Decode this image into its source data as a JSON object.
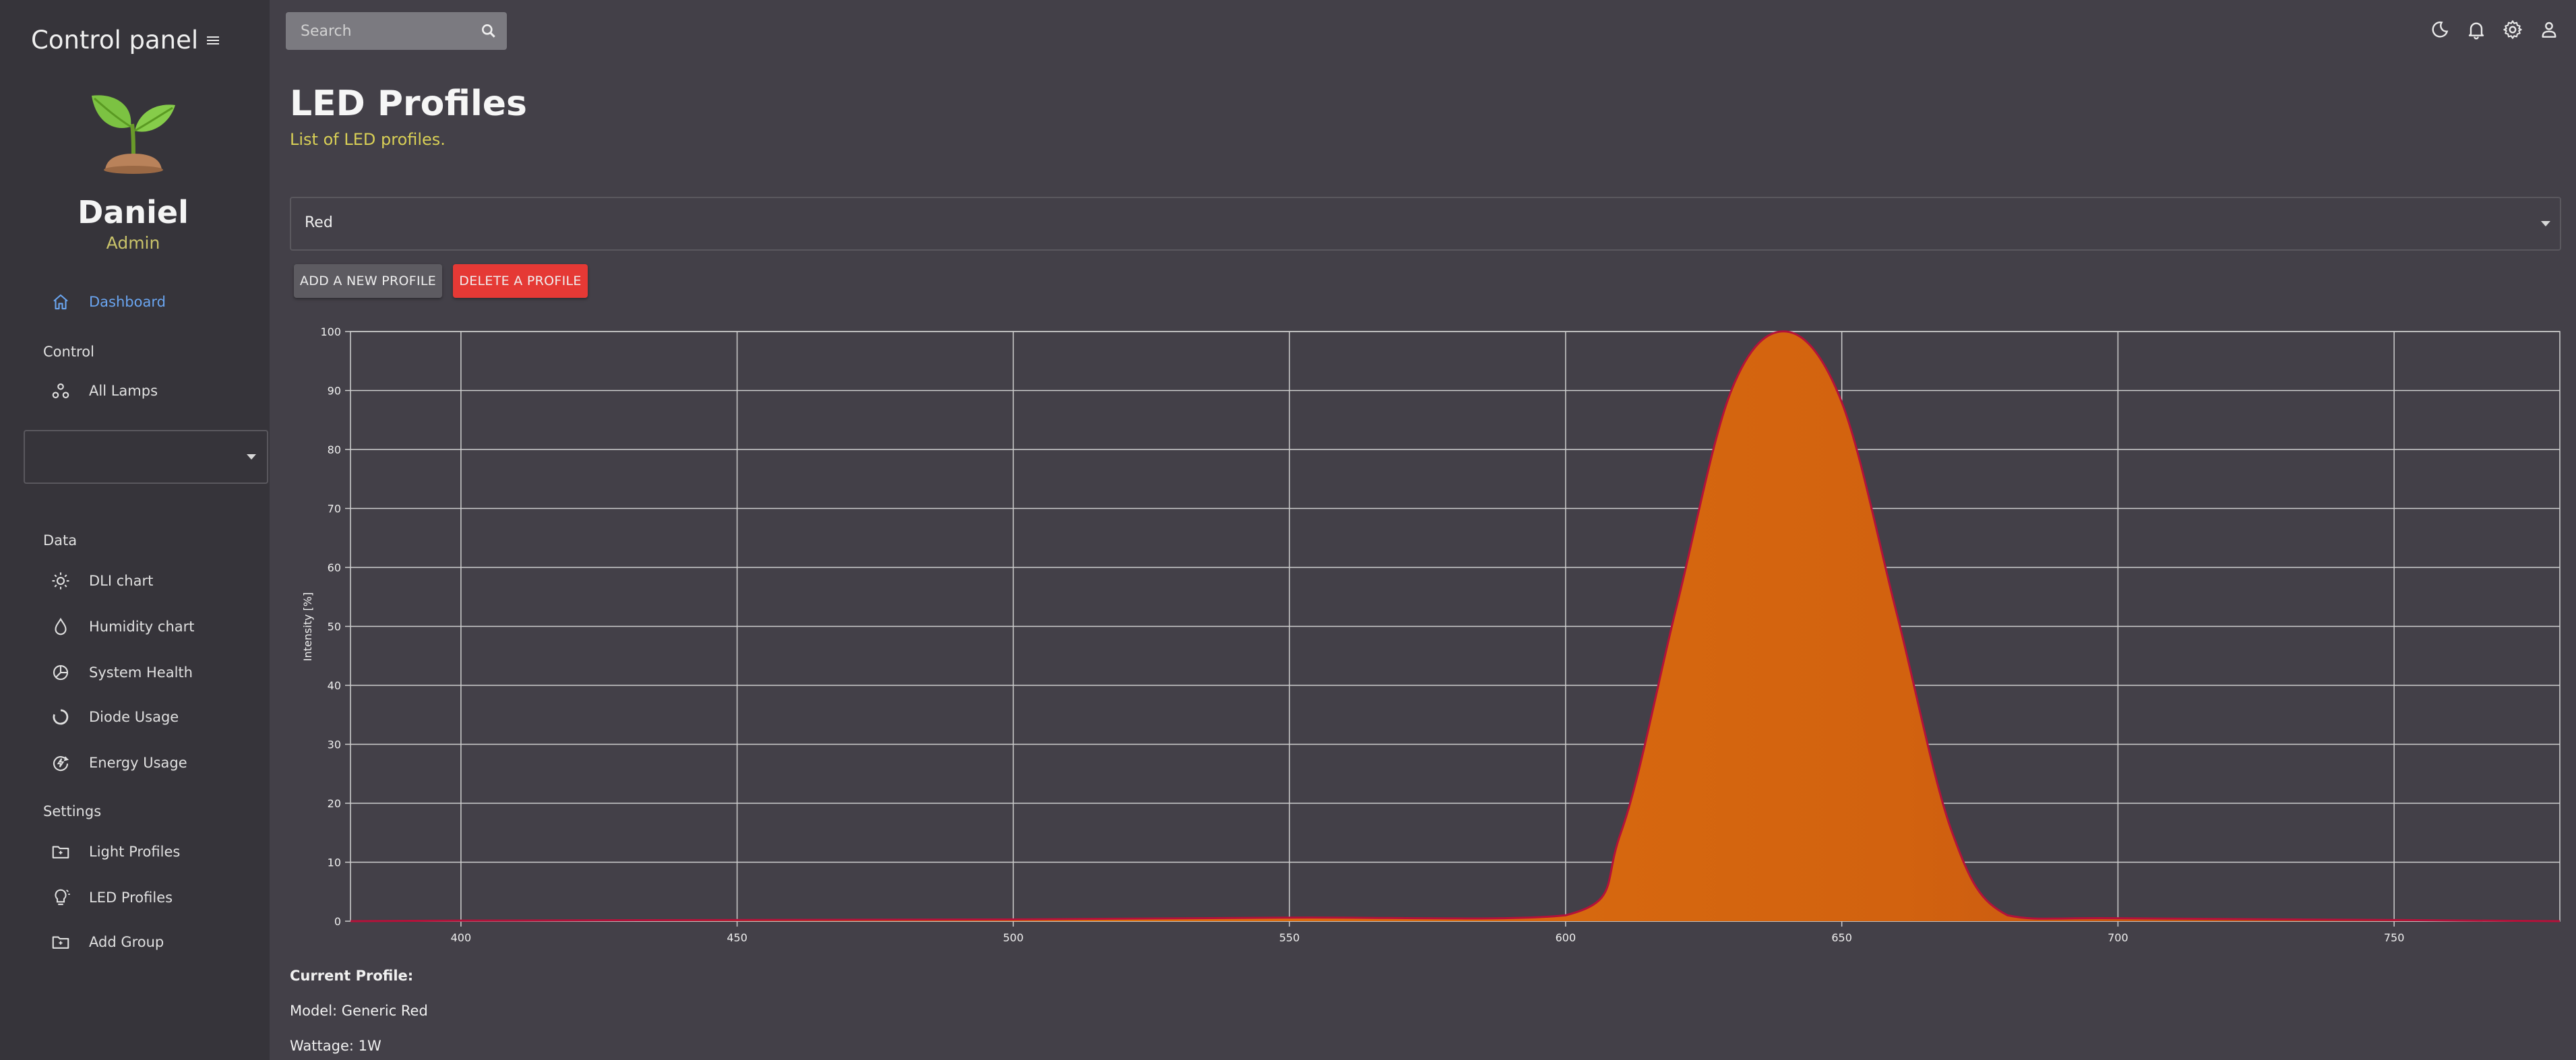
{
  "sidebar": {
    "title": "Control panel",
    "user": {
      "name": "Daniel",
      "role": "Admin"
    },
    "items": [
      {
        "label": "Dashboard",
        "icon": "home-icon"
      },
      {
        "label": "All Lamps",
        "icon": "lamps-icon"
      },
      {
        "label": "DLI chart",
        "icon": "sun-icon"
      },
      {
        "label": "Humidity chart",
        "icon": "droplet-icon"
      },
      {
        "label": "System Health",
        "icon": "pie-icon"
      },
      {
        "label": "Diode Usage",
        "icon": "donut-icon"
      },
      {
        "label": "Energy Usage",
        "icon": "energy-icon"
      },
      {
        "label": "Light Profiles",
        "icon": "folder-icon"
      },
      {
        "label": "LED Profiles",
        "icon": "bulb-icon"
      },
      {
        "label": "Add Group",
        "icon": "folder-add-icon"
      }
    ],
    "sections": {
      "control": "Control",
      "data": "Data",
      "settings": "Settings"
    }
  },
  "topbar": {
    "search_placeholder": "Search"
  },
  "main": {
    "title": "LED Profiles",
    "subtitle": "List of LED profiles.",
    "select_value": "Red",
    "add_button": "ADD A NEW PROFILE",
    "delete_button": "DELETE A PROFILE",
    "current_profile_label": "Current Profile:",
    "model_text": "Model: Generic Red",
    "wattage_text": "Wattage: 1W"
  },
  "colors": {
    "accent": "#6aa5f0",
    "subtitle": "#d8cf56",
    "delete": "#e53935",
    "curve_fill": "#e0700f",
    "curve_stroke": "#b3123a"
  },
  "chart_data": {
    "type": "area",
    "title": "",
    "xlabel": "",
    "ylabel": "Intensity [%]",
    "xlim": [
      380,
      780
    ],
    "ylim": [
      0,
      100
    ],
    "x_ticks": [
      400,
      450,
      500,
      550,
      600,
      650,
      700,
      750
    ],
    "y_ticks": [
      0,
      10,
      20,
      30,
      40,
      50,
      60,
      70,
      80,
      90,
      100
    ],
    "grid": true,
    "series": [
      {
        "x": [
          380,
          400,
          450,
          500,
          550,
          600,
          610,
          620,
          630,
          640,
          650,
          660,
          670,
          680,
          700,
          750,
          780
        ],
        "values": [
          0,
          0.1,
          0.2,
          0.3,
          0.6,
          1,
          15,
          53,
          90,
          100,
          88,
          52,
          15,
          1,
          0.5,
          0.2,
          0
        ]
      }
    ]
  }
}
